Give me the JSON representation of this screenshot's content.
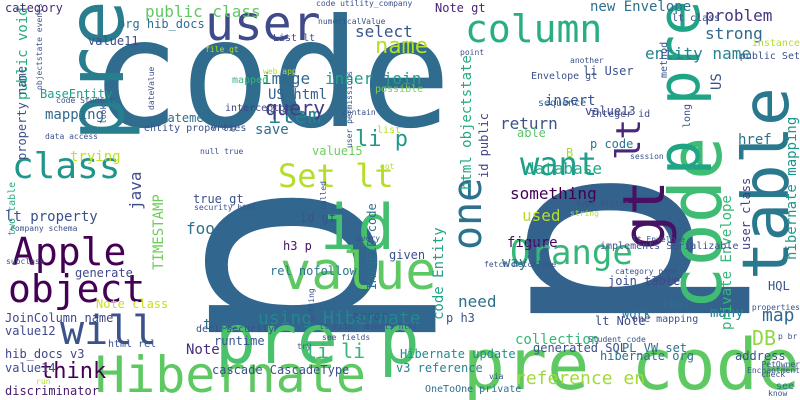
{
  "words": [
    {
      "text": "p",
      "color": "#31668e"
    },
    {
      "text": "code",
      "color": "#2f6c8e"
    },
    {
      "text": "p",
      "color": "#33628d"
    },
    {
      "text": "pre code",
      "color": "#5ec962"
    },
    {
      "text": "pre p",
      "color": "#4ac16d"
    },
    {
      "text": "Hibernate",
      "color": "#5ec962"
    },
    {
      "text": "code",
      "color": "#3fbc73"
    },
    {
      "text": "table",
      "color": "#2a788e"
    },
    {
      "text": "pre",
      "color": "#287d8e"
    },
    {
      "text": "p pre",
      "color": "#20a486"
    },
    {
      "text": "user",
      "color": "#3e4a89"
    },
    {
      "text": "id",
      "color": "#44bf70"
    },
    {
      "text": "value",
      "color": "#5ec962"
    },
    {
      "text": "gt",
      "color": "#471063"
    },
    {
      "text": "column",
      "color": "#29af7f"
    },
    {
      "text": "Apple",
      "color": "#440154"
    },
    {
      "text": "object",
      "color": "#440154"
    },
    {
      "text": "class",
      "color": "#1f968b"
    },
    {
      "text": "will",
      "color": "#3b528b"
    },
    {
      "text": "Orange",
      "color": "#35b779"
    },
    {
      "text": "Set lt",
      "color": "#b5de2b"
    },
    {
      "text": "want",
      "color": "#1f9e89"
    },
    {
      "text": "one",
      "color": "#2c728e"
    },
    {
      "text": "lt",
      "color": "#482878"
    },
    {
      "text": "name",
      "color": "#b5de2b"
    },
    {
      "text": "think",
      "color": "#440154"
    },
    {
      "text": "item",
      "color": "#26828e"
    },
    {
      "text": "query",
      "color": "#433e85"
    },
    {
      "text": "li p",
      "color": "#1f9a8a"
    },
    {
      "text": "li li",
      "color": "#35b779"
    },
    {
      "text": "using Hibernate",
      "color": "#23888e"
    },
    {
      "text": "reference en",
      "color": "#9fda3a"
    },
    {
      "text": "database",
      "color": "#22a884"
    },
    {
      "text": "map",
      "color": "#31688e"
    },
    {
      "text": "DB",
      "color": "#8fd744"
    },
    {
      "text": "problem",
      "color": "#46337e"
    },
    {
      "text": "strong",
      "color": "#31688e"
    },
    {
      "text": "entity name",
      "color": "#26828e"
    },
    {
      "text": "public class",
      "color": "#5ec962"
    },
    {
      "text": "select",
      "color": "#39568c"
    },
    {
      "text": "inner join",
      "color": "#1fa088"
    },
    {
      "text": "image",
      "color": "#31688e"
    },
    {
      "text": "US html",
      "color": "#35608d"
    },
    {
      "text": "save",
      "color": "#2e6e8e"
    },
    {
      "text": "foo",
      "color": "#2c718e"
    },
    {
      "text": "Note",
      "color": "#472d7b"
    },
    {
      "text": "return",
      "color": "#3b528b"
    },
    {
      "text": "something",
      "color": "#440154"
    },
    {
      "text": "used",
      "color": "#b8de29"
    },
    {
      "text": "figure",
      "color": "#46085c"
    },
    {
      "text": "way",
      "color": "#2d708e"
    },
    {
      "text": "need",
      "color": "#2d708e"
    },
    {
      "text": "collection",
      "color": "#35b779"
    },
    {
      "text": "many",
      "color": "#25848e"
    },
    {
      "text": "java",
      "color": "#3e4c8a"
    },
    {
      "text": "TIMESTAMP",
      "color": "#6ece58"
    },
    {
      "text": "lt property",
      "color": "#3b528b"
    },
    {
      "text": "mapping",
      "color": "#31688e"
    },
    {
      "text": "BaseEntity",
      "color": "#1f9e89"
    },
    {
      "text": "public void",
      "color": "#26ad81"
    },
    {
      "text": "property name",
      "color": "#3b528b"
    },
    {
      "text": "trying",
      "color": "#c2df23"
    },
    {
      "text": "hibernate mapping",
      "color": "#1f968b"
    },
    {
      "text": "US",
      "color": "#3b528b"
    },
    {
      "text": "href",
      "color": "#2d708e"
    },
    {
      "text": "private Envelope",
      "color": "#35b779"
    },
    {
      "text": "user class",
      "color": "#433d84"
    },
    {
      "text": "HQL",
      "color": "#3b528b"
    },
    {
      "text": "code Entity",
      "color": "#20a386"
    },
    {
      "text": "html objectstate",
      "color": "#25ab82"
    },
    {
      "text": "id public",
      "color": "#414487"
    },
    {
      "text": "hibernate org",
      "color": "#2c728e"
    },
    {
      "text": "Hibernate update",
      "color": "#238a8d"
    },
    {
      "text": "v3 reference",
      "color": "#25838e"
    },
    {
      "text": "new Envelope",
      "color": "#2e6f8e"
    },
    {
      "text": "Note gt",
      "color": "#482475"
    },
    {
      "text": "org hib_docs",
      "color": "#2e6e8e"
    },
    {
      "text": "value11",
      "color": "#3e4a89"
    },
    {
      "text": "category",
      "color": "#472a7a"
    },
    {
      "text": "JoinColumn name",
      "color": "#404688"
    },
    {
      "text": "hib_docs v3",
      "color": "#404588"
    },
    {
      "text": "value12",
      "color": "#3f4788"
    },
    {
      "text": "value14",
      "color": "#3d4d8a"
    },
    {
      "text": "discriminator",
      "color": "#481a6c"
    },
    {
      "text": "generated SQL",
      "color": "#3b528b"
    },
    {
      "text": "p code",
      "color": "#2a768e"
    },
    {
      "text": "lt Note",
      "color": "#3e4989"
    },
    {
      "text": "PL_VW set",
      "color": "#2d708e"
    },
    {
      "text": "p h3",
      "color": "#3a538b"
    },
    {
      "text": "h3 p",
      "color": "#471063"
    },
    {
      "text": "id gt",
      "color": "#3b528b"
    },
    {
      "text": "type",
      "color": "#2f6b8e"
    },
    {
      "text": "runtime",
      "color": "#39568c"
    },
    {
      "text": "error",
      "color": "#3b518b"
    },
    {
      "text": "true gt",
      "color": "#3c4f8a"
    },
    {
      "text": "rel nofollow",
      "color": "#2c738e"
    },
    {
      "text": "IMAGEID code",
      "color": "#2d718e"
    },
    {
      "text": "cascade CascadeType",
      "color": "#3b528b"
    },
    {
      "text": "decl security",
      "color": "#3d4e8a"
    },
    {
      "text": "value15",
      "color": "#6ccd5a"
    },
    {
      "text": "generate",
      "color": "#3e4989"
    },
    {
      "text": "Note class",
      "color": "#c8e020"
    },
    {
      "text": "given",
      "color": "#3c4f8a"
    },
    {
      "text": "statement",
      "color": "#2e6e8e"
    },
    {
      "text": "entity properties",
      "color": "#3b528b"
    },
    {
      "text": "interceptor",
      "color": "#414487"
    },
    {
      "text": "mapped",
      "color": "#35b779"
    },
    {
      "text": "value13",
      "color": "#3f4889"
    },
    {
      "text": "li User",
      "color": "#3b528b"
    },
    {
      "text": "sequence",
      "color": "#2c718e"
    },
    {
      "text": "insert",
      "color": "#39558c"
    },
    {
      "text": "Integer id",
      "color": "#3e4a89"
    },
    {
      "text": "able",
      "color": "#56c667"
    },
    {
      "text": "join table",
      "color": "#3e4a89"
    },
    {
      "text": "work",
      "color": "#2d718e"
    },
    {
      "text": "tool",
      "color": "#2f6c8e"
    },
    {
      "text": "one mapping",
      "color": "#3b528b"
    },
    {
      "text": "see",
      "color": "#2d708e"
    },
    {
      "text": "address",
      "color": "#3b528b"
    },
    {
      "text": "Envelope gt",
      "color": "#3b528b"
    },
    {
      "text": "B",
      "color": "#a5db36"
    },
    {
      "text": "list",
      "color": "#b5de2b"
    },
    {
      "text": "lt class",
      "color": "#3e4a89"
    },
    {
      "text": "List lt",
      "color": "#3e4a89"
    },
    {
      "text": "possible",
      "color": "#7ad151"
    },
    {
      "text": "Enchantment",
      "color": "#3b528b"
    },
    {
      "text": "OneToOne private",
      "color": "#2d708e"
    },
    {
      "text": "security html",
      "color": "#3b528b"
    },
    {
      "text": "code Student",
      "color": "#3b528b"
    },
    {
      "text": "implements Serializable",
      "color": "#3b528b"
    },
    {
      "text": "lt Envelope",
      "color": "#3b528b"
    },
    {
      "text": "html rel",
      "color": "#3b528b"
    },
    {
      "text": "lt File",
      "color": "#3b528b"
    },
    {
      "text": "two table",
      "color": "#29af7f"
    },
    {
      "text": "company schema",
      "color": "#3b528b"
    },
    {
      "text": "subclass",
      "color": "#3b528b"
    },
    {
      "text": "run",
      "color": "#b5de2b"
    },
    {
      "text": "PetOwner",
      "color": "#3b528b"
    },
    {
      "text": "Thank",
      "color": "#3b528b"
    },
    {
      "text": "method",
      "color": "#3b528b"
    },
    {
      "text": "instance",
      "color": "#b5de2b"
    },
    {
      "text": "public Set",
      "color": "#3b528b"
    },
    {
      "text": "category name",
      "color": "#3b528b"
    },
    {
      "text": "session",
      "color": "#3b528b"
    },
    {
      "text": "file gt",
      "color": "#b5de2b"
    },
    {
      "text": "web app",
      "color": "#b5de2b"
    },
    {
      "text": "data access",
      "color": "#3b528b"
    },
    {
      "text": "null true",
      "color": "#3b528b"
    },
    {
      "text": "code utility_company",
      "color": "#3b528b"
    },
    {
      "text": "numericalValue",
      "color": "#3b528b"
    },
    {
      "text": "objectstate events",
      "color": "#3b528b"
    },
    {
      "text": "user permissions",
      "color": "#3b528b"
    },
    {
      "text": "see fields",
      "color": "#3b528b"
    },
    {
      "text": "events html",
      "color": "#3b528b"
    },
    {
      "text": "getting",
      "color": "#3b528b"
    },
    {
      "text": "Student code",
      "color": "#3b528b"
    },
    {
      "text": "fetch FetchType",
      "color": "#3b528b"
    },
    {
      "text": "p br",
      "color": "#3b528b"
    },
    {
      "text": "via",
      "color": "#3b528b"
    },
    {
      "text": "key",
      "color": "#3b528b"
    },
    {
      "text": "check",
      "color": "#3b528b"
    },
    {
      "text": "know",
      "color": "#3b528b"
    },
    {
      "text": "wrong",
      "color": "#3b528b"
    },
    {
      "text": "string",
      "color": "#b5de2b"
    },
    {
      "text": "contain",
      "color": "#3b528b"
    },
    {
      "text": "point",
      "color": "#3b528b"
    },
    {
      "text": "another",
      "color": "#3b528b"
    },
    {
      "text": "look",
      "color": "#3b528b"
    },
    {
      "text": "long",
      "color": "#3b528b"
    },
    {
      "text": "try",
      "color": "#3b528b"
    },
    {
      "text": "dateValue",
      "color": "#3b528b"
    },
    {
      "text": "called",
      "color": "#3b528b"
    },
    {
      "text": "every",
      "color": "#3b528b"
    },
    {
      "text": "got",
      "color": "#b5de2b"
    },
    {
      "text": "type string",
      "color": "#3b528b"
    },
    {
      "text": "properties",
      "color": "#3b528b"
    }
  ]
}
